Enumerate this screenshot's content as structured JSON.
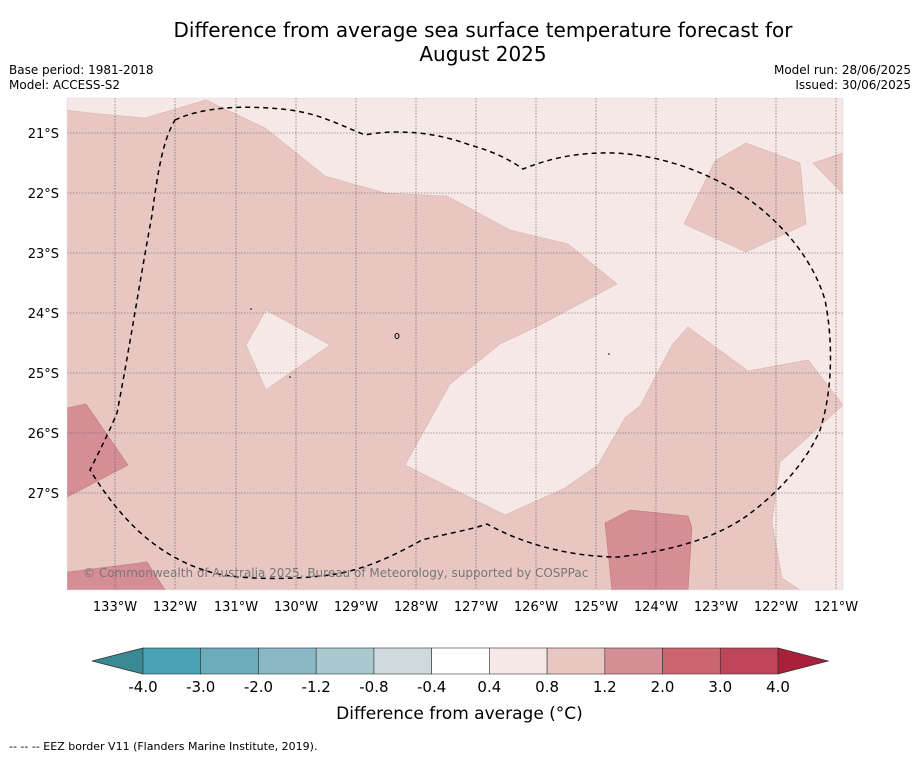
{
  "title_line1": "Difference from average sea surface temperature forecast for",
  "title_line2": "August 2025",
  "base_period": "Base period: 1981-2018",
  "model": "Model: ACCESS-S2",
  "model_run": "Model run: 28/06/2025",
  "issued": "Issued: 30/06/2025",
  "copyright": "© Commonwealth of Australia 2025, Bureau of Meteorology, supported by COSPPac",
  "lat_labels": [
    "21°S",
    "22°S",
    "23°S",
    "24°S",
    "25°S",
    "26°S",
    "27°S"
  ],
  "lon_labels": [
    "133°W",
    "132°W",
    "131°W",
    "130°W",
    "129°W",
    "128°W",
    "127°W",
    "126°W",
    "125°W",
    "124°W",
    "123°W",
    "122°W",
    "121°W"
  ],
  "colorbar": {
    "title": "Difference from average (°C)",
    "ticks": [
      "-4.0",
      "-3.0",
      "-2.0",
      "-1.2",
      "-0.8",
      "-0.4",
      "0.4",
      "0.8",
      "1.2",
      "2.0",
      "3.0",
      "4.0"
    ],
    "colors": [
      "#3a8a96",
      "#49a2b3",
      "#6cacbb",
      "#8ab8c4",
      "#a9c9ce",
      "#d0dadd",
      "#ffffff",
      "#f5e8e6",
      "#e8c7c2",
      "#d68e96",
      "#cb6670",
      "#bf4558",
      "#aa1f3a"
    ]
  },
  "footer": "--  --  -- EEZ border V11 (Flanders Marine Institute, 2019)."
}
